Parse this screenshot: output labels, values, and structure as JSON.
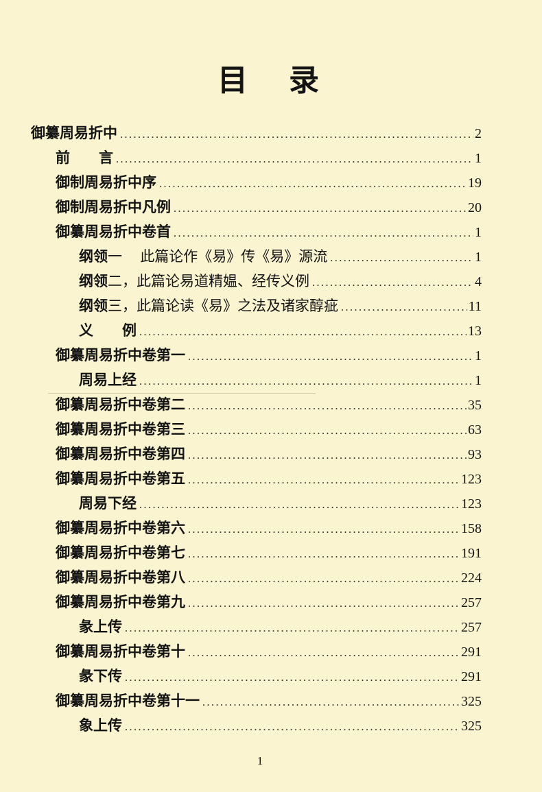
{
  "page": {
    "title": "目　录",
    "footer_page_number": "1",
    "background_color": "#faf4d0",
    "text_color": "#141414"
  },
  "toc": {
    "entries": [
      {
        "bold": "御纂周易折中",
        "rest": "",
        "page": "2",
        "indent": 0
      },
      {
        "bold": "前　　言",
        "rest": "",
        "page": "1",
        "indent": 1
      },
      {
        "bold": "御制周易折中序",
        "rest": "",
        "page": "19",
        "indent": 1
      },
      {
        "bold": "御制周易折中凡例",
        "rest": "",
        "page": "20",
        "indent": 1
      },
      {
        "bold": "御纂周易折中卷首",
        "rest": "",
        "page": "1",
        "indent": 1
      },
      {
        "bold": "纲领",
        "rest": "一　 此篇论作《易》传《易》源流",
        "page": "1",
        "indent": 2
      },
      {
        "bold": "纲领",
        "rest": "二，此篇论易道精媪、经传义例",
        "page": "4",
        "indent": 2
      },
      {
        "bold": "纲领",
        "rest": "三，此篇论读《易》之法及诸家醇疵",
        "page": "11",
        "indent": 2
      },
      {
        "bold": "义　　例",
        "rest": "",
        "page": "13",
        "indent": 2
      },
      {
        "bold": "御纂周易折中卷第一",
        "rest": "",
        "page": "1",
        "indent": 1
      },
      {
        "bold": "周易上经",
        "rest": "",
        "page": "1",
        "indent": 2
      },
      {
        "bold": "御纂周易折中卷第二",
        "rest": "",
        "page": "35",
        "indent": 1
      },
      {
        "bold": "御纂周易折中卷第三",
        "rest": "",
        "page": "63",
        "indent": 1
      },
      {
        "bold": "御纂周易折中卷第四",
        "rest": "",
        "page": "93",
        "indent": 1
      },
      {
        "bold": "御纂周易折中卷第五",
        "rest": "",
        "page": "123",
        "indent": 1
      },
      {
        "bold": "周易下经",
        "rest": "",
        "page": "123",
        "indent": 2
      },
      {
        "bold": "御纂周易折中卷第六",
        "rest": "",
        "page": "158",
        "indent": 1
      },
      {
        "bold": "御纂周易折中卷第七",
        "rest": "",
        "page": "191",
        "indent": 1
      },
      {
        "bold": "御纂周易折中卷第八",
        "rest": "",
        "page": "224",
        "indent": 1
      },
      {
        "bold": "御纂周易折中卷第九",
        "rest": "",
        "page": "257",
        "indent": 1
      },
      {
        "bold": "彖上传",
        "rest": "",
        "page": "257",
        "indent": 2
      },
      {
        "bold": "御纂周易折中卷第十",
        "rest": "",
        "page": "291",
        "indent": 1
      },
      {
        "bold": "彖下传",
        "rest": "",
        "page": "291",
        "indent": 2
      },
      {
        "bold": "御纂周易折中卷第十一",
        "rest": "",
        "page": "325",
        "indent": 1
      },
      {
        "bold": "象上传",
        "rest": "",
        "page": "325",
        "indent": 2
      }
    ]
  }
}
